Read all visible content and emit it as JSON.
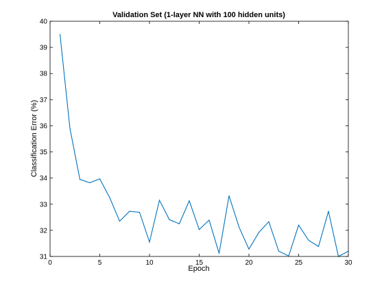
{
  "chart_data": {
    "type": "line",
    "title": "Validation Set (1-layer NN with 100 hidden units)",
    "xlabel": "Epoch",
    "ylabel": "Classification Error (%)",
    "xlim": [
      0,
      30
    ],
    "ylim": [
      31,
      40
    ],
    "xticks": [
      0,
      5,
      10,
      15,
      20,
      25,
      30
    ],
    "yticks": [
      31,
      32,
      33,
      34,
      35,
      36,
      37,
      38,
      39,
      40
    ],
    "grid": false,
    "series": [
      {
        "color": "#0072BD",
        "x": [
          1,
          2,
          3,
          4,
          5,
          6,
          7,
          8,
          9,
          10,
          11,
          12,
          13,
          14,
          15,
          16,
          17,
          18,
          19,
          20,
          21,
          22,
          23,
          24,
          25,
          26,
          27,
          28,
          29,
          30
        ],
        "y": [
          39.5,
          35.9,
          33.95,
          33.82,
          33.97,
          33.25,
          32.35,
          32.73,
          32.69,
          31.55,
          33.15,
          32.41,
          32.25,
          33.13,
          32.03,
          32.39,
          31.12,
          33.32,
          32.13,
          31.28,
          31.92,
          32.33,
          31.2,
          31.02,
          32.2,
          31.62,
          31.38,
          32.73,
          31.0,
          31.2
        ]
      }
    ]
  }
}
